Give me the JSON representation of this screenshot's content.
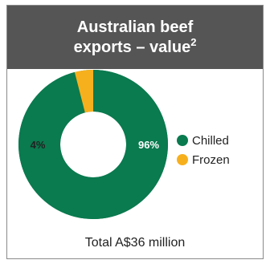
{
  "header": {
    "title_line1": "Australian beef",
    "title_line2": "exports – value",
    "superscript": "2"
  },
  "chart_data": {
    "type": "pie",
    "variant": "donut",
    "labels": [
      "Chilled",
      "Frozen"
    ],
    "values": [
      96,
      4
    ],
    "value_labels": [
      "96%",
      "4%"
    ],
    "colors": [
      "#0a7a4f",
      "#f7b01d"
    ],
    "legend_placement": "right"
  },
  "footer": {
    "total": "Total A$36 million"
  }
}
